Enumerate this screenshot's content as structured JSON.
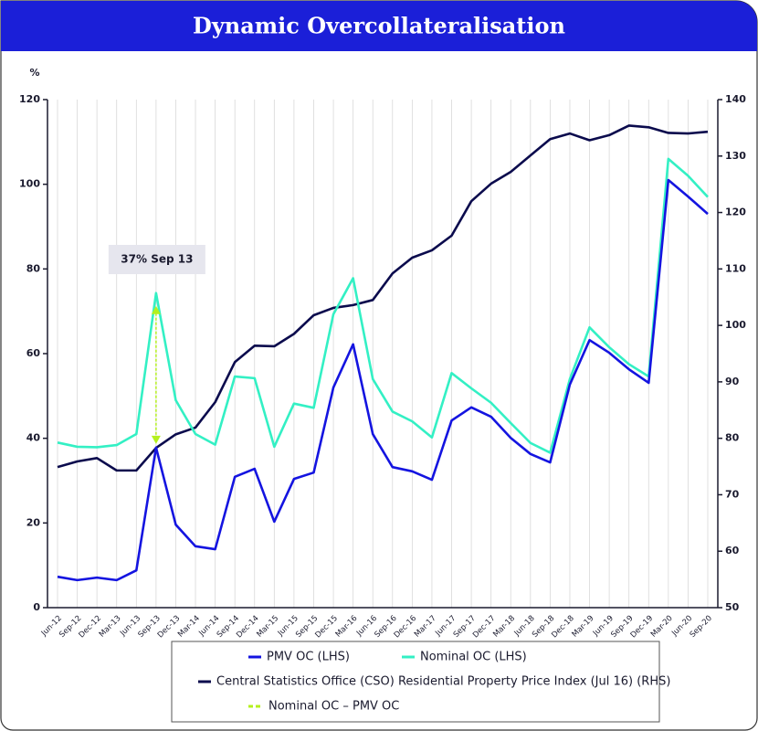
{
  "chart_data": {
    "type": "line",
    "title": "Dynamic Overcollateralisation",
    "y_label": "%",
    "categories": [
      "Jun-12",
      "Sep-12",
      "Dec-12",
      "Mar-13",
      "Jun-13",
      "Sep-13",
      "Dec-13",
      "Mar-14",
      "Jun-14",
      "Sep-14",
      "Dec-14",
      "Mar-15",
      "Jun-15",
      "Sep-15",
      "Dec-15",
      "Mar-16",
      "Jun-16",
      "Sep-16",
      "Dec-16",
      "Mar-17",
      "Jun-17",
      "Sep-17",
      "Dec-17",
      "Mar-18",
      "Jun-18",
      "Sep-18",
      "Dec-18",
      "Mar-19",
      "Jun-19",
      "Sep-19",
      "Dec-19",
      "Mar-20",
      "Jun-20",
      "Sep-20"
    ],
    "series": [
      {
        "name": "PMV OC (LHS)",
        "color": "#1414e0",
        "values": [
          7.3,
          6.5,
          7.1,
          6.5,
          8.8,
          37.8,
          19.6,
          14.5,
          13.8,
          30.9,
          32.8,
          20.3,
          30.4,
          31.9,
          52,
          62.2,
          41,
          33.2,
          32.2,
          30.2,
          44.2,
          47.3,
          45.1,
          40.1,
          36.3,
          34.3,
          52.7,
          63.2,
          60.2,
          56.3,
          53.1,
          101,
          97.1,
          93
        ]
      },
      {
        "name": "Nominal OC (LHS)",
        "color": "#33f0c4",
        "values": [
          39,
          38,
          37.9,
          38.4,
          41,
          74.3,
          49,
          41,
          38.5,
          54.6,
          54.2,
          38,
          48.2,
          47.2,
          69.3,
          77.8,
          54,
          46.3,
          44,
          40.2,
          55.4,
          51.8,
          48.4,
          43.6,
          38.9,
          36.6,
          54,
          66.2,
          61.5,
          57.5,
          54.6,
          106,
          102,
          97
        ]
      },
      {
        "name": "Central Statistics Office (CSO) Residential Property Price Index (Jul 16) (RHS)",
        "color": "#0b0b4d",
        "axis": "y2",
        "values": [
          74.9,
          75.9,
          76.5,
          74.3,
          74.3,
          78.3,
          80.7,
          81.9,
          86.4,
          93.5,
          96.4,
          96.3,
          98.5,
          101.8,
          103.1,
          103.6,
          104.5,
          109.2,
          112,
          113.3,
          115.9,
          122,
          125.1,
          127.2,
          130.1,
          133,
          134,
          132.8,
          133.7,
          135.4,
          135.1,
          134.1,
          134,
          134.3
        ]
      }
    ],
    "difference": {
      "name": "Nominal OC – PMV OC",
      "color": "#b4f01e",
      "label": "37% Sep 13",
      "category": "Sep-13"
    },
    "ylim": [
      0,
      120
    ],
    "yticks": [
      0,
      20,
      40,
      60,
      80,
      100,
      120
    ],
    "y2lim": [
      50,
      140
    ],
    "y2ticks": [
      50,
      60,
      70,
      80,
      90,
      100,
      110,
      120,
      130,
      140
    ],
    "grid": "x"
  }
}
